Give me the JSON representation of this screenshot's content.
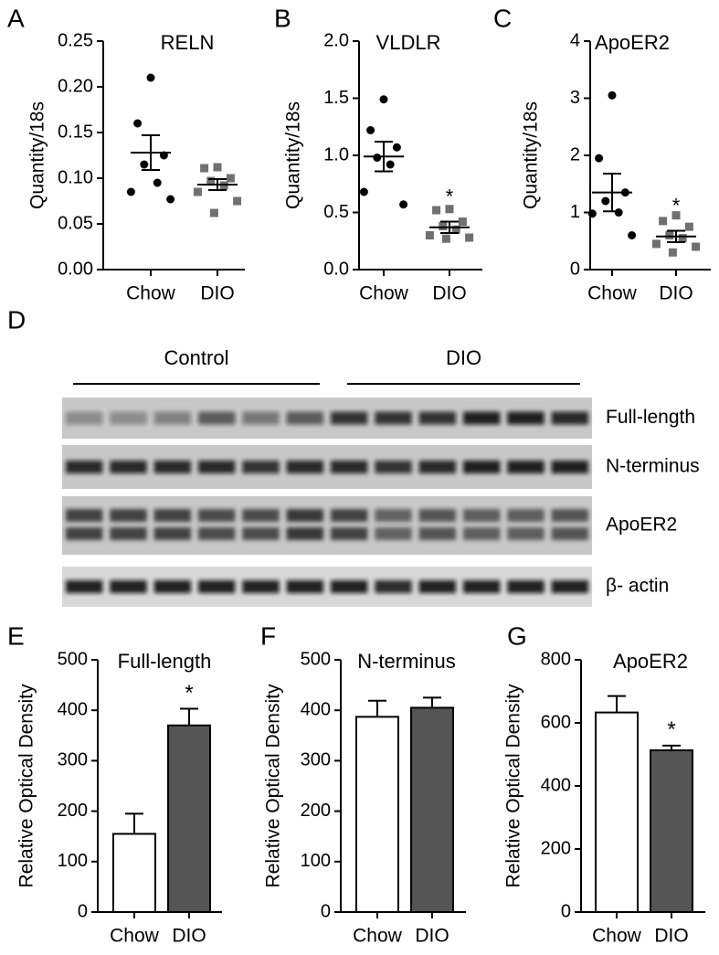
{
  "chart_data": [
    {
      "type": "dotplot",
      "label": "A",
      "title": "RELN",
      "ylabel": "Quantity/18s",
      "categories": [
        "Chow",
        "DIO"
      ],
      "groups": [
        {
          "values": [
            0.21,
            0.16,
            0.125,
            0.115,
            0.095,
            0.085,
            0.077
          ],
          "mean": 0.128,
          "error": 0.019,
          "color": "#000000",
          "marker": "circle"
        },
        {
          "values": [
            0.112,
            0.111,
            0.1,
            0.097,
            0.092,
            0.085,
            0.075,
            0.062
          ],
          "mean": 0.093,
          "error": 0.006,
          "color": "#707070",
          "marker": "square"
        }
      ],
      "ylim": [
        0,
        0.25
      ],
      "yticks": [
        {
          "value": 0,
          "label": "0.00"
        },
        0.05,
        {
          "value": 0.1,
          "label": "0.10"
        },
        0.15,
        {
          "value": 0.2,
          "label": "0.20"
        },
        0.25
      ]
    },
    {
      "type": "dotplot",
      "label": "B",
      "title": "VLDLR",
      "ylabel": "Quantity/18s",
      "categories": [
        "Chow",
        "DIO"
      ],
      "annotation": "*",
      "groups": [
        {
          "values": [
            1.49,
            1.22,
            1.07,
            0.98,
            0.92,
            0.68,
            0.57
          ],
          "mean": 0.99,
          "error": 0.13,
          "color": "#000000",
          "marker": "circle"
        },
        {
          "values": [
            0.53,
            0.52,
            0.42,
            0.38,
            0.35,
            0.3,
            0.28,
            0.27
          ],
          "mean": 0.37,
          "error": 0.05,
          "color": "#707070",
          "marker": "square"
        }
      ],
      "ylim": [
        0,
        2
      ],
      "yticks": [
        {
          "value": 0,
          "label": "0.0"
        },
        0.5,
        {
          "value": 1,
          "label": "1.0"
        },
        1.5,
        {
          "value": 2,
          "label": "2.0"
        }
      ]
    },
    {
      "type": "dotplot",
      "label": "C",
      "title": "ApoER2",
      "ylabel": "Quantity/18s",
      "categories": [
        "Chow",
        "DIO"
      ],
      "annotation": "*",
      "groups": [
        {
          "values": [
            3.05,
            1.95,
            1.35,
            1.2,
            1.0,
            0.98,
            0.6
          ],
          "mean": 1.35,
          "error": 0.33,
          "color": "#000000",
          "marker": "circle"
        },
        {
          "values": [
            0.95,
            0.85,
            0.75,
            0.6,
            0.55,
            0.45,
            0.4,
            0.3
          ],
          "mean": 0.58,
          "error": 0.1,
          "color": "#707070",
          "marker": "square"
        }
      ],
      "ylim": [
        0,
        4
      ],
      "yticks": [
        0,
        1,
        2,
        3,
        4
      ]
    },
    {
      "type": "bar",
      "label": "E",
      "title": "Full-length",
      "ylabel": "Relative Optical Density",
      "categories": [
        "Chow",
        "DIO"
      ],
      "annotation": "*",
      "values": [
        155,
        370
      ],
      "errors": [
        40,
        33
      ],
      "colors": [
        "#ffffff",
        "#555555"
      ],
      "ylim": [
        0,
        500
      ],
      "yticks": [
        0,
        100,
        200,
        300,
        400,
        500
      ]
    },
    {
      "type": "bar",
      "label": "F",
      "title": "N-terminus",
      "ylabel": "Relative Optical Density",
      "categories": [
        "Chow",
        "DIO"
      ],
      "values": [
        387,
        405
      ],
      "errors": [
        32,
        20
      ],
      "colors": [
        "#ffffff",
        "#555555"
      ],
      "ylim": [
        0,
        500
      ],
      "yticks": [
        0,
        100,
        200,
        300,
        400,
        500
      ]
    },
    {
      "type": "bar",
      "label": "G",
      "title": "ApoER2",
      "ylabel": "Relative Optical Density",
      "categories": [
        "Chow",
        "DIO"
      ],
      "annotation": "*",
      "values": [
        633,
        513
      ],
      "errors": [
        52,
        15
      ],
      "colors": [
        "#ffffff",
        "#555555"
      ],
      "ylim": [
        0,
        800
      ],
      "yticks": [
        0,
        200,
        400,
        600,
        800
      ]
    }
  ],
  "blot": {
    "label": "D",
    "groups": [
      "Control",
      "DIO"
    ],
    "bands": [
      "Full-length",
      "N-terminus",
      "ApoER2",
      "β- actin"
    ]
  }
}
